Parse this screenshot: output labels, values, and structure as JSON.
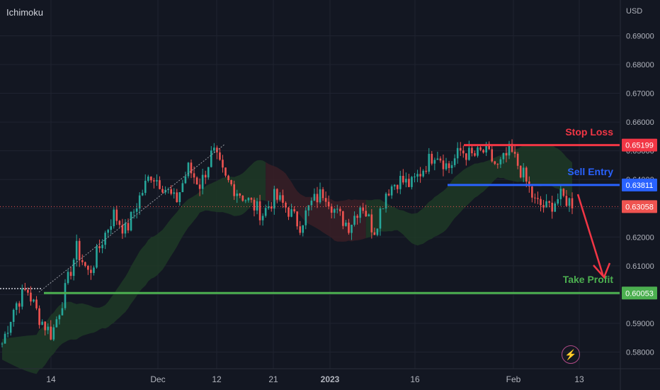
{
  "header": {
    "indicator": "Ichimoku",
    "currency": "USD"
  },
  "colors": {
    "background": "#131722",
    "bull": "#26a69a",
    "bear": "#ef5350",
    "stop_loss": "#f23645",
    "sell_entry": "#2962ff",
    "take_profit": "#4caf50",
    "cloud_bull": "#1e3a26",
    "cloud_bear": "#3a1e26"
  },
  "chart_data": {
    "type": "candlestick",
    "x_ticks": [
      "14",
      "Dec",
      "12",
      "21",
      "2023",
      "16",
      "Feb",
      "13"
    ],
    "y_ticks": [
      "0.69000",
      "0.68000",
      "0.67000",
      "0.66000",
      "0.65000",
      "0.64000",
      "0.63000",
      "0.62000",
      "0.61000",
      "0.60000",
      "0.59000",
      "0.58000"
    ],
    "y_range": [
      0.5775,
      0.6975
    ],
    "levels": [
      {
        "name": "Stop Loss",
        "value": "0.65199",
        "color": "#f23645"
      },
      {
        "name": "Sell Entry",
        "value": "0.63811",
        "color": "#2962ff"
      },
      {
        "name": "Take Profit",
        "value": "0.60053",
        "color": "#4caf50"
      }
    ],
    "last_price": "0.63058",
    "price_anchors": [
      0.583,
      0.596,
      0.602,
      0.592,
      0.586,
      0.6,
      0.616,
      0.607,
      0.618,
      0.628,
      0.622,
      0.633,
      0.642,
      0.638,
      0.632,
      0.644,
      0.638,
      0.65,
      0.64,
      0.636,
      0.632,
      0.628,
      0.634,
      0.63,
      0.624,
      0.632,
      0.636,
      0.628,
      0.624,
      0.632,
      0.622,
      0.636,
      0.64,
      0.638,
      0.644,
      0.65,
      0.644,
      0.65,
      0.648,
      0.65,
      0.644,
      0.65,
      0.642,
      0.632,
      0.63,
      0.634,
      0.632
    ]
  }
}
